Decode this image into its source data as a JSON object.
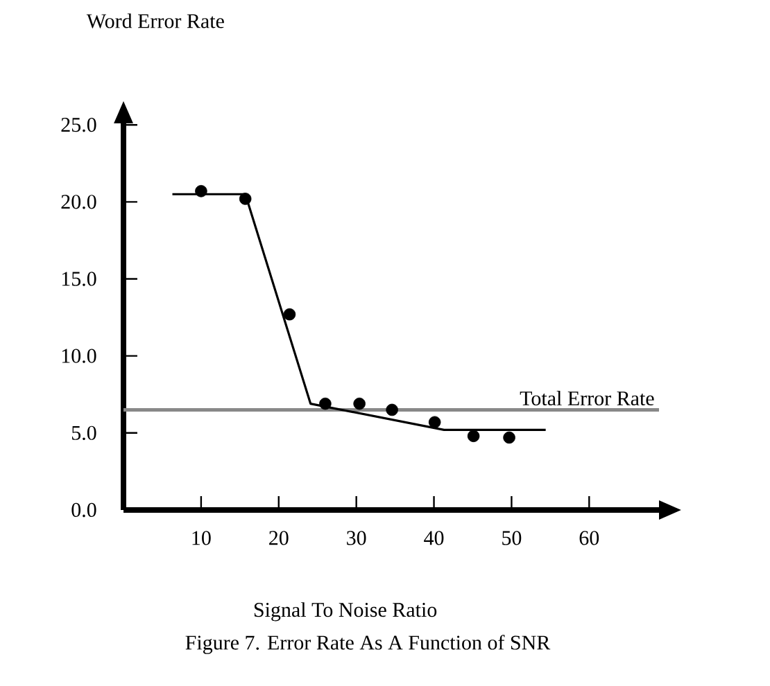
{
  "chart_data": {
    "type": "scatter",
    "xlabel": "Signal To Noise Ratio",
    "ylabel": "Word Error Rate",
    "annotations": [
      "Figure 7.  Error Rate As A Function of SNR"
    ],
    "xlim": [
      0,
      69
    ],
    "ylim": [
      0,
      25.1
    ],
    "xticks": [
      10,
      20,
      30,
      40,
      50,
      60
    ],
    "yticks": [
      {
        "value": 0,
        "label": "0.0"
      },
      {
        "value": 5,
        "label": "5.0"
      },
      {
        "value": 10,
        "label": "10.0"
      },
      {
        "value": 15,
        "label": "15.0"
      },
      {
        "value": 20,
        "label": "20.0"
      },
      {
        "value": 25,
        "label": "25.0"
      }
    ],
    "grid": false,
    "series": [
      {
        "marker": "circle",
        "color": "#000000",
        "x": [
          10,
          15.7,
          21.4,
          26.0,
          30.4,
          34.6,
          40.1,
          45.1,
          49.7
        ],
        "values": [
          20.7,
          20.2,
          12.7,
          6.9,
          6.9,
          6.5,
          5.7,
          4.8,
          4.7
        ]
      },
      {
        "type": "line",
        "color": "#000000",
        "marker": "none",
        "line_style": "solid",
        "x": [
          6.3,
          15.7,
          24.1,
          41.3,
          54.4
        ],
        "values": [
          20.5,
          20.5,
          6.9,
          5.2,
          5.2
        ]
      }
    ],
    "ref_lines": [
      {
        "axis": "y",
        "value": 6.5,
        "label": "Total Error Rate",
        "color": "#888888"
      }
    ]
  }
}
